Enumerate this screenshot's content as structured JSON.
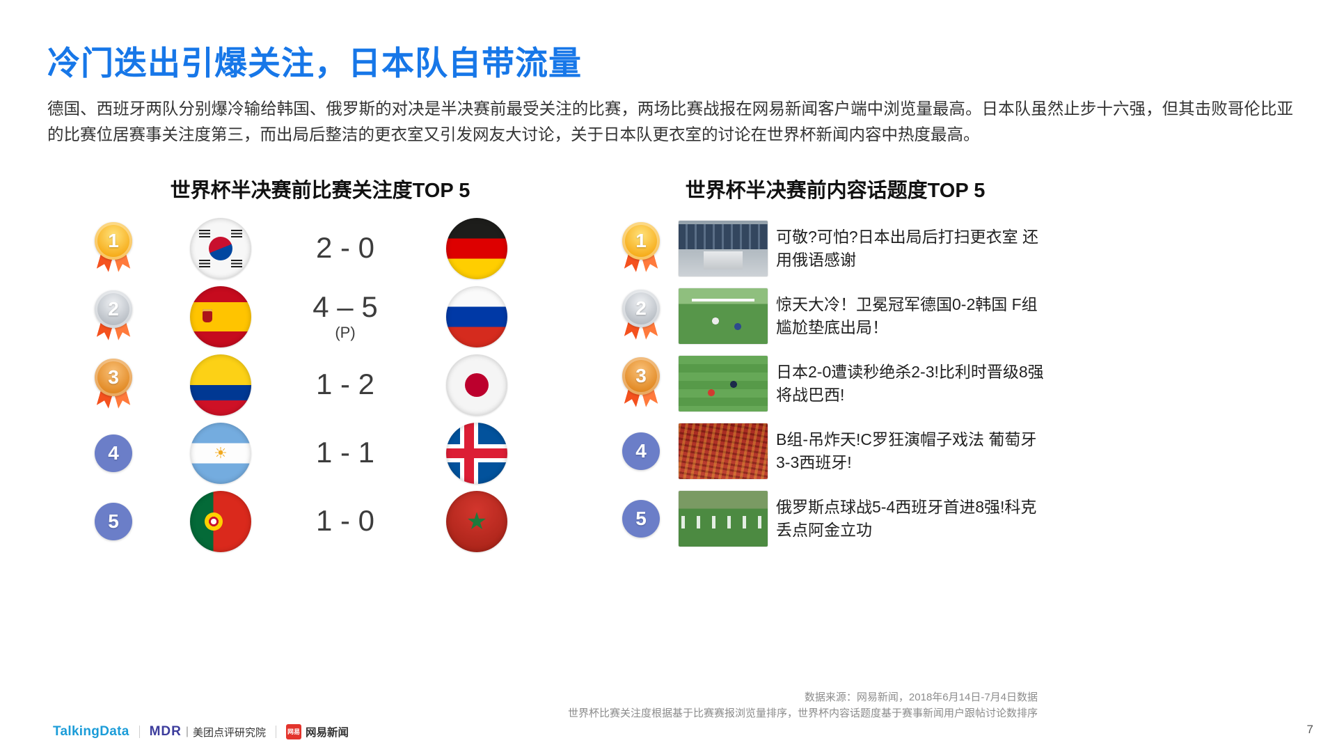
{
  "page": {
    "title": "冷门迭出引爆关注，日本队自带流量",
    "body": "德国、西班牙两队分别爆冷输给韩国、俄罗斯的对决是半决赛前最受关注的比赛，两场比赛战报在网易新闻客户端中浏览量最高。日本队虽然止步十六强，但其击败哥伦比亚的比赛位居赛事关注度第三，而出局后整洁的更衣室又引发网友大讨论，关于日本队更衣室的讨论在世界杯新闻内容中热度最高。",
    "page_number": "7"
  },
  "left_panel": {
    "title": "世界杯半决赛前比赛关注度TOP 5",
    "rows": [
      {
        "rank": "1",
        "medal": "gold",
        "home_flag": "south-korea",
        "score": "2 - 0",
        "score_note": "",
        "away_flag": "germany"
      },
      {
        "rank": "2",
        "medal": "silver",
        "home_flag": "spain",
        "score": "4 – 5",
        "score_note": "(P)",
        "away_flag": "russia"
      },
      {
        "rank": "3",
        "medal": "bronze",
        "home_flag": "colombia",
        "score": "1 - 2",
        "score_note": "",
        "away_flag": "japan"
      },
      {
        "rank": "4",
        "medal": "plain",
        "home_flag": "argentina",
        "score": "1 - 1",
        "score_note": "",
        "away_flag": "iceland"
      },
      {
        "rank": "5",
        "medal": "plain",
        "home_flag": "portugal",
        "score": "1 - 0",
        "score_note": "",
        "away_flag": "morocco"
      }
    ]
  },
  "right_panel": {
    "title": "世界杯半决赛前内容话题度TOP 5",
    "rows": [
      {
        "rank": "1",
        "medal": "gold",
        "image": "locker-room",
        "text": "可敬?可怕?日本出局后打扫更衣室 还用俄语感谢"
      },
      {
        "rank": "2",
        "medal": "silver",
        "image": "germany-korea-match",
        "text": "惊天大冷！卫冕冠军德国0-2韩国 F组尴尬垫底出局！"
      },
      {
        "rank": "3",
        "medal": "bronze",
        "image": "japan-belgium-match",
        "text": "日本2-0遭读秒绝杀2-3!比利时晋级8强将战巴西!"
      },
      {
        "rank": "4",
        "medal": "plain",
        "image": "portugal-spain-fans",
        "text": "B组-吊炸天!C罗狂演帽子戏法 葡萄牙3-3西班牙!"
      },
      {
        "rank": "5",
        "medal": "plain",
        "image": "russia-spain-match",
        "text": "俄罗斯点球战5-4西班牙首进8强!科克丢点阿金立功"
      }
    ]
  },
  "footer": {
    "source_line1": "数据来源：网易新闻，2018年6月14日-7月4日数据",
    "source_line2": "世界杯比赛关注度根据基于比赛赛报浏览量排序，世界杯内容话题度基于赛事新闻用户跟帖讨论数排序",
    "logos": {
      "talkingdata": "TalkingData",
      "mdr": "MDR",
      "meituan": "美团点评研究院",
      "netease_badge": "网易",
      "netease": "网易新闻"
    }
  }
}
